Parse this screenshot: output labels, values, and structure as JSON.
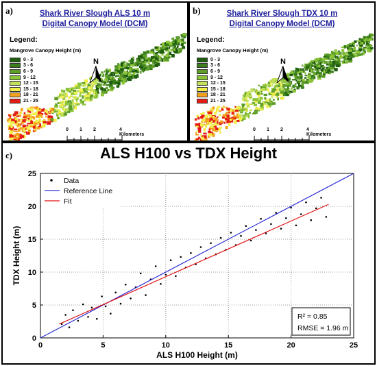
{
  "maps": [
    {
      "id": "a",
      "panel_label": "a)",
      "title_line1": "Shark River Slough ALS 10 m",
      "title_line2": "Digital Canopy Model (DCM)"
    },
    {
      "id": "b",
      "panel_label": "b)",
      "title_line1": "Shark River Slough TDX 10 m",
      "title_line2": "Digital Canopy Model (DCM)"
    }
  ],
  "legend": {
    "title": "Legend:",
    "subtitle": "Mangrove Canopy Height (m)",
    "classes": [
      {
        "label": "0 - 3",
        "color": "#1f5c0f"
      },
      {
        "label": "3 - 6",
        "color": "#3a7f1c"
      },
      {
        "label": "6 - 9",
        "color": "#5e9e28"
      },
      {
        "label": "9 - 12",
        "color": "#8cc43a"
      },
      {
        "label": "12 - 15",
        "color": "#c2e05a"
      },
      {
        "label": "15 - 18",
        "color": "#f2ee4a"
      },
      {
        "label": "18 - 21",
        "color": "#f5a21c"
      },
      {
        "label": "21 - 25",
        "color": "#e41b12"
      }
    ]
  },
  "north_label": "N",
  "scale_bar": {
    "ticks": [
      "0",
      "1",
      "2",
      "4 Kilometers"
    ]
  },
  "plot": {
    "panel_label": "c)"
  },
  "chart_data": {
    "type": "scatter",
    "title": "ALS H100 vs TDX Height",
    "xlabel": "ALS H100 Height (m)",
    "ylabel": "TDX Height (m)",
    "xlim": [
      0,
      25
    ],
    "ylim": [
      0,
      25
    ],
    "xticks": [
      0,
      5,
      10,
      15,
      20,
      25
    ],
    "yticks": [
      0,
      5,
      10,
      15,
      20,
      25
    ],
    "grid": true,
    "legend_position": "top-left",
    "series": [
      {
        "name": "Data",
        "kind": "points",
        "color": "#000000",
        "points": [
          [
            1.7,
            2.1
          ],
          [
            2.0,
            3.5
          ],
          [
            2.3,
            1.6
          ],
          [
            2.6,
            4.2
          ],
          [
            3.0,
            2.6
          ],
          [
            3.4,
            5.1
          ],
          [
            3.8,
            3.2
          ],
          [
            4.1,
            4.6
          ],
          [
            4.5,
            2.9
          ],
          [
            4.9,
            6.3
          ],
          [
            5.2,
            4.8
          ],
          [
            5.6,
            3.7
          ],
          [
            6.0,
            6.9
          ],
          [
            6.4,
            5.2
          ],
          [
            6.8,
            8.1
          ],
          [
            7.2,
            6.0
          ],
          [
            7.6,
            7.7
          ],
          [
            8.0,
            9.8
          ],
          [
            8.4,
            6.5
          ],
          [
            8.8,
            8.9
          ],
          [
            9.2,
            10.9
          ],
          [
            9.6,
            8.2
          ],
          [
            10.0,
            9.6
          ],
          [
            10.4,
            11.8
          ],
          [
            10.8,
            9.4
          ],
          [
            11.2,
            12.3
          ],
          [
            11.6,
            10.7
          ],
          [
            12.0,
            12.9
          ],
          [
            12.4,
            11.2
          ],
          [
            12.8,
            13.8
          ],
          [
            13.2,
            12.1
          ],
          [
            13.6,
            14.4
          ],
          [
            14.0,
            12.7
          ],
          [
            14.4,
            15.2
          ],
          [
            14.8,
            13.4
          ],
          [
            15.2,
            16.0
          ],
          [
            15.6,
            14.1
          ],
          [
            16.0,
            15.5
          ],
          [
            16.4,
            17.0
          ],
          [
            16.8,
            14.8
          ],
          [
            17.2,
            16.4
          ],
          [
            17.6,
            18.1
          ],
          [
            18.0,
            15.9
          ],
          [
            18.4,
            17.3
          ],
          [
            18.8,
            19.0
          ],
          [
            19.2,
            16.6
          ],
          [
            19.6,
            18.2
          ],
          [
            20.0,
            19.8
          ],
          [
            20.4,
            17.1
          ],
          [
            20.8,
            18.8
          ],
          [
            21.2,
            20.6
          ],
          [
            21.6,
            17.9
          ],
          [
            22.0,
            19.7
          ],
          [
            22.4,
            21.3
          ],
          [
            22.8,
            18.4
          ]
        ]
      },
      {
        "name": "Reference Line",
        "kind": "line",
        "color": "#2b2bd6",
        "points": [
          [
            0,
            0
          ],
          [
            25,
            25
          ]
        ]
      },
      {
        "name": "Fit",
        "kind": "line",
        "color": "#e01010",
        "points": [
          [
            1.5,
            2.1
          ],
          [
            23,
            20.3
          ]
        ]
      }
    ],
    "annotations": {
      "r2": "R² = 0.85",
      "rmse": "RMSE = 1.96 m"
    }
  }
}
